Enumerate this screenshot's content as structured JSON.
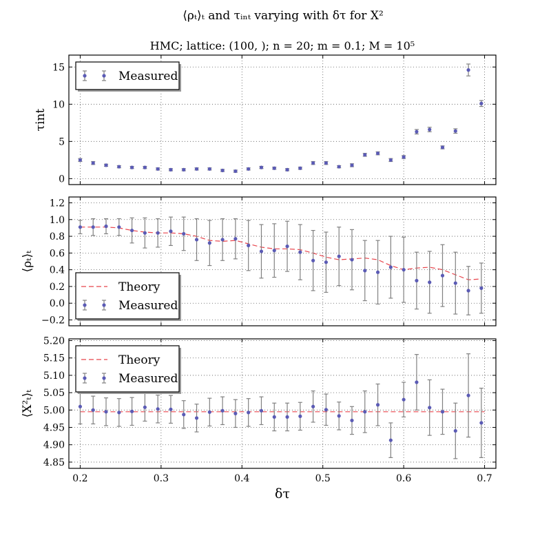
{
  "figure": {
    "suptitle": "⟨ρₜ⟩ₜ and τᵢₙₜ varying with δτ for X²",
    "subtitle": "HMC; lattice: (100, ); n = 20; m = 0.1; M = 10⁵",
    "xlabel": "δτ"
  },
  "colors": {
    "marker": "#5b5bb5",
    "errorbar": "#808080",
    "theory": "#e8434b",
    "grid": "#555555"
  },
  "chart_data": [
    {
      "type": "scatter",
      "name": "tau_int",
      "ylabel": "τint",
      "xlim": [
        0.186,
        0.714
      ],
      "ylim": [
        -0.8,
        16.6
      ],
      "xticks": [
        0.2,
        0.3,
        0.4,
        0.5,
        0.6,
        0.7
      ],
      "xtick_labels": [
        "",
        "",
        "",
        "",
        "",
        ""
      ],
      "yticks": [
        0,
        5,
        10,
        15
      ],
      "ytick_labels": [
        "0",
        "5",
        "10",
        "15"
      ],
      "grid": true,
      "legend": {
        "placement": "top-left",
        "entries": [
          {
            "kind": "measured",
            "label": "Measured"
          }
        ]
      },
      "series": [
        {
          "name": "Measured",
          "kind": "errorbar",
          "x": [
            0.2,
            0.216,
            0.232,
            0.248,
            0.264,
            0.28,
            0.296,
            0.312,
            0.328,
            0.344,
            0.36,
            0.376,
            0.392,
            0.408,
            0.424,
            0.44,
            0.456,
            0.472,
            0.488,
            0.504,
            0.52,
            0.536,
            0.552,
            0.568,
            0.584,
            0.6,
            0.616,
            0.632,
            0.648,
            0.664,
            0.68,
            0.696
          ],
          "y": [
            2.5,
            2.1,
            1.8,
            1.6,
            1.5,
            1.5,
            1.3,
            1.2,
            1.2,
            1.3,
            1.3,
            1.1,
            1.0,
            1.3,
            1.5,
            1.4,
            1.2,
            1.4,
            2.1,
            2.1,
            1.6,
            1.8,
            3.2,
            3.4,
            2.5,
            2.9,
            6.3,
            6.6,
            4.2,
            6.4,
            14.6,
            10.1
          ],
          "err": [
            0.2,
            0.2,
            0.15,
            0.15,
            0.15,
            0.15,
            0.15,
            0.15,
            0.15,
            0.15,
            0.15,
            0.15,
            0.15,
            0.15,
            0.15,
            0.15,
            0.15,
            0.15,
            0.2,
            0.2,
            0.15,
            0.2,
            0.2,
            0.2,
            0.2,
            0.2,
            0.3,
            0.3,
            0.2,
            0.3,
            0.8,
            0.4
          ]
        }
      ]
    },
    {
      "type": "scatter",
      "name": "rho_t",
      "ylabel": "⟨ρₜ⟩ₜ",
      "xlim": [
        0.186,
        0.714
      ],
      "ylim": [
        -0.27,
        1.27
      ],
      "xticks": [
        0.2,
        0.3,
        0.4,
        0.5,
        0.6,
        0.7
      ],
      "xtick_labels": [
        "",
        "",
        "",
        "",
        "",
        ""
      ],
      "yticks": [
        -0.2,
        0.0,
        0.2,
        0.4,
        0.6,
        0.8,
        1.0,
        1.2
      ],
      "ytick_labels": [
        "−0.2",
        "0.0",
        "0.2",
        "0.4",
        "0.6",
        "0.8",
        "1.0",
        "1.2"
      ],
      "grid": true,
      "legend": {
        "placement": "bottom-left",
        "entries": [
          {
            "kind": "theory",
            "label": "Theory"
          },
          {
            "kind": "measured",
            "label": "Measured"
          }
        ]
      },
      "series": [
        {
          "name": "Theory",
          "kind": "dashed-line",
          "x": [
            0.2,
            0.216,
            0.232,
            0.248,
            0.264,
            0.28,
            0.296,
            0.312,
            0.328,
            0.344,
            0.36,
            0.376,
            0.392,
            0.408,
            0.424,
            0.44,
            0.456,
            0.472,
            0.488,
            0.504,
            0.52,
            0.536,
            0.552,
            0.568,
            0.584,
            0.6,
            0.616,
            0.632,
            0.648,
            0.664,
            0.68,
            0.696
          ],
          "y": [
            0.91,
            0.91,
            0.91,
            0.9,
            0.87,
            0.85,
            0.84,
            0.84,
            0.83,
            0.8,
            0.75,
            0.74,
            0.75,
            0.71,
            0.67,
            0.65,
            0.65,
            0.64,
            0.6,
            0.55,
            0.52,
            0.53,
            0.54,
            0.52,
            0.45,
            0.4,
            0.42,
            0.43,
            0.4,
            0.34,
            0.28,
            0.29
          ]
        },
        {
          "name": "Measured",
          "kind": "errorbar",
          "x": [
            0.2,
            0.216,
            0.232,
            0.248,
            0.264,
            0.28,
            0.296,
            0.312,
            0.328,
            0.344,
            0.36,
            0.376,
            0.392,
            0.408,
            0.424,
            0.44,
            0.456,
            0.472,
            0.488,
            0.504,
            0.52,
            0.536,
            0.552,
            0.568,
            0.584,
            0.6,
            0.616,
            0.632,
            0.648,
            0.664,
            0.68,
            0.696
          ],
          "y": [
            0.91,
            0.91,
            0.92,
            0.91,
            0.87,
            0.84,
            0.84,
            0.86,
            0.83,
            0.76,
            0.72,
            0.76,
            0.77,
            0.69,
            0.62,
            0.63,
            0.68,
            0.61,
            0.51,
            0.49,
            0.56,
            0.52,
            0.39,
            0.37,
            0.43,
            0.4,
            0.27,
            0.25,
            0.33,
            0.24,
            0.15,
            0.18
          ],
          "err": [
            0.08,
            0.1,
            0.09,
            0.1,
            0.15,
            0.18,
            0.17,
            0.17,
            0.2,
            0.25,
            0.27,
            0.25,
            0.24,
            0.3,
            0.32,
            0.32,
            0.3,
            0.33,
            0.36,
            0.36,
            0.35,
            0.36,
            0.36,
            0.38,
            0.37,
            0.39,
            0.34,
            0.37,
            0.37,
            0.37,
            0.29,
            0.3
          ]
        }
      ]
    },
    {
      "type": "scatter",
      "name": "x2",
      "ylabel": "⟨X²ₜ⟩ₜ",
      "xlim": [
        0.186,
        0.714
      ],
      "ylim": [
        4.832,
        5.205
      ],
      "xticks": [
        0.2,
        0.3,
        0.4,
        0.5,
        0.6,
        0.7
      ],
      "xtick_labels": [
        "0.2",
        "0.3",
        "0.4",
        "0.5",
        "0.6",
        "0.7"
      ],
      "yticks": [
        4.85,
        4.9,
        4.95,
        5.0,
        5.05,
        5.1,
        5.15,
        5.2
      ],
      "ytick_labels": [
        "4.85",
        "4.90",
        "4.95",
        "5.00",
        "5.05",
        "5.10",
        "5.15",
        "5.20"
      ],
      "grid": true,
      "legend": {
        "placement": "top-left",
        "entries": [
          {
            "kind": "theory",
            "label": "Theory"
          },
          {
            "kind": "measured",
            "label": "Measured"
          }
        ]
      },
      "series": [
        {
          "name": "Theory",
          "kind": "dashed-line",
          "x": [
            0.2,
            0.7
          ],
          "y": [
            4.995,
            4.995
          ]
        },
        {
          "name": "Measured",
          "kind": "errorbar",
          "x": [
            0.2,
            0.216,
            0.232,
            0.248,
            0.264,
            0.28,
            0.296,
            0.312,
            0.328,
            0.344,
            0.36,
            0.376,
            0.392,
            0.408,
            0.424,
            0.44,
            0.456,
            0.472,
            0.488,
            0.504,
            0.52,
            0.536,
            0.552,
            0.568,
            0.584,
            0.6,
            0.616,
            0.632,
            0.648,
            0.664,
            0.68,
            0.696
          ],
          "y": [
            5.01,
            5.0,
            4.995,
            4.993,
            4.996,
            5.008,
            5.003,
            5.002,
            4.987,
            4.977,
            4.994,
            4.998,
            4.99,
            4.993,
            4.998,
            4.98,
            4.98,
            4.982,
            5.01,
            5.001,
            4.983,
            4.97,
            4.995,
            5.015,
            4.913,
            5.03,
            5.08,
            5.007,
            4.995,
            4.94,
            5.042,
            4.963
          ],
          "err": [
            0.05,
            0.04,
            0.04,
            0.04,
            0.04,
            0.04,
            0.04,
            0.04,
            0.04,
            0.04,
            0.04,
            0.04,
            0.04,
            0.04,
            0.04,
            0.04,
            0.04,
            0.04,
            0.045,
            0.045,
            0.04,
            0.04,
            0.06,
            0.06,
            0.05,
            0.05,
            0.08,
            0.08,
            0.065,
            0.08,
            0.12,
            0.1
          ]
        }
      ]
    }
  ]
}
